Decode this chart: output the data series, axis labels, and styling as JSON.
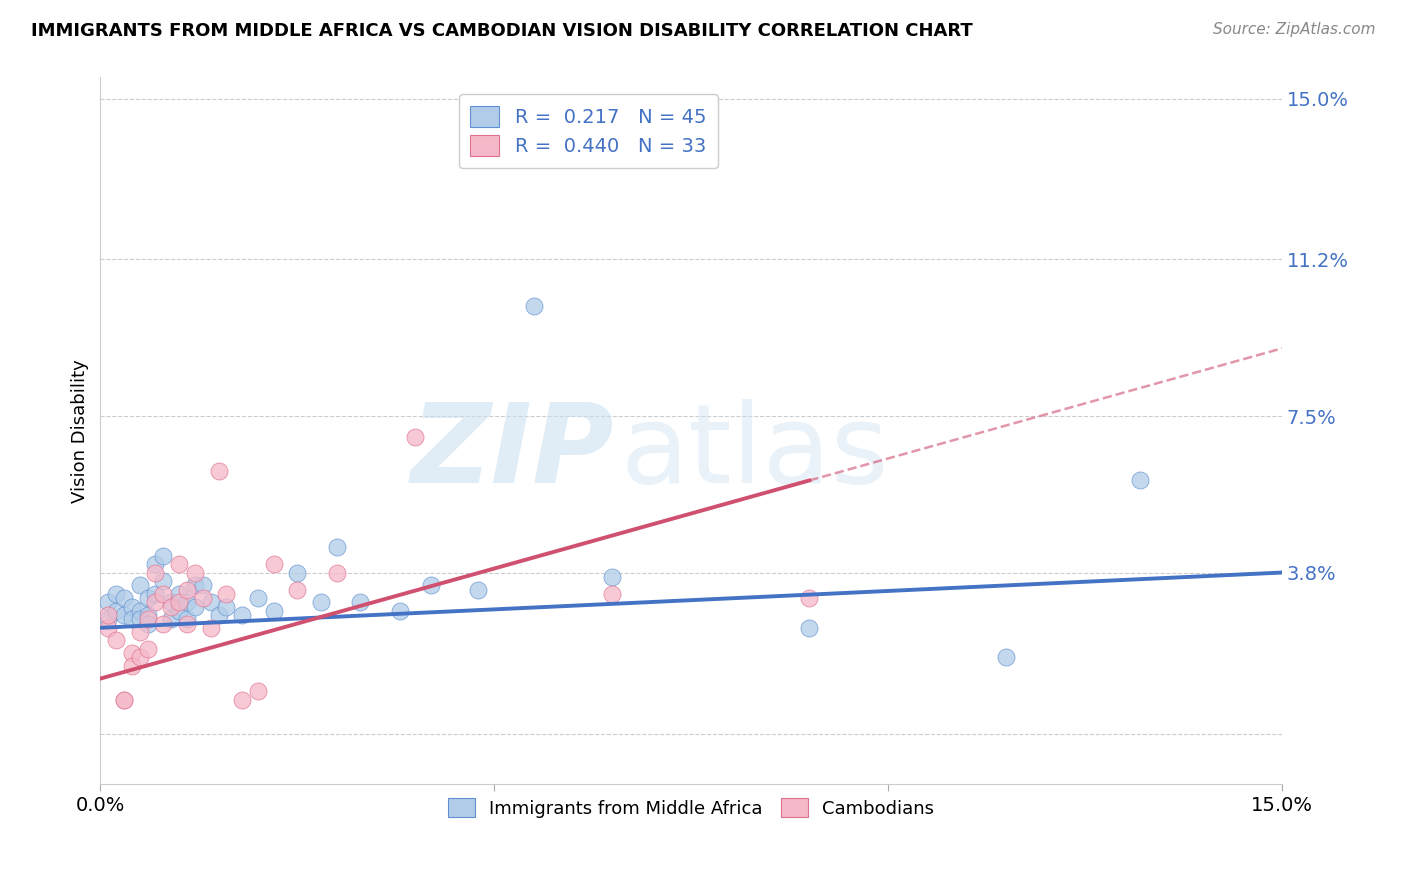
{
  "title": "IMMIGRANTS FROM MIDDLE AFRICA VS CAMBODIAN VISION DISABILITY CORRELATION CHART",
  "source": "Source: ZipAtlas.com",
  "ylabel": "Vision Disability",
  "xmin": 0.0,
  "xmax": 0.15,
  "ymin": -0.012,
  "ymax": 0.155,
  "ytick_vals": [
    0.0,
    0.038,
    0.075,
    0.112,
    0.15
  ],
  "ytick_labels": [
    "",
    "3.8%",
    "7.5%",
    "11.2%",
    "15.0%"
  ],
  "xtick_vals": [
    0.0,
    0.05,
    0.1,
    0.15
  ],
  "xtick_labels": [
    "0.0%",
    "",
    "",
    "15.0%"
  ],
  "blue_R": "0.217",
  "blue_N": "45",
  "pink_R": "0.440",
  "pink_N": "33",
  "blue_dot_color": "#b0cce8",
  "pink_dot_color": "#f5b8c8",
  "blue_edge_color": "#6090d0",
  "pink_edge_color": "#e07090",
  "blue_line_color": "#4472c4",
  "pink_line_color": "#d05070",
  "blue_scatter_x": [
    0.001,
    0.001,
    0.002,
    0.002,
    0.003,
    0.003,
    0.004,
    0.004,
    0.005,
    0.005,
    0.005,
    0.006,
    0.006,
    0.006,
    0.007,
    0.007,
    0.008,
    0.008,
    0.009,
    0.009,
    0.01,
    0.01,
    0.011,
    0.011,
    0.012,
    0.012,
    0.013,
    0.014,
    0.015,
    0.016,
    0.018,
    0.02,
    0.022,
    0.025,
    0.028,
    0.03,
    0.033,
    0.038,
    0.042,
    0.048,
    0.055,
    0.065,
    0.09,
    0.115,
    0.132
  ],
  "blue_scatter_y": [
    0.027,
    0.031,
    0.029,
    0.033,
    0.028,
    0.032,
    0.03,
    0.027,
    0.035,
    0.029,
    0.027,
    0.032,
    0.028,
    0.026,
    0.04,
    0.033,
    0.042,
    0.036,
    0.031,
    0.027,
    0.033,
    0.029,
    0.031,
    0.027,
    0.035,
    0.03,
    0.035,
    0.031,
    0.028,
    0.03,
    0.028,
    0.032,
    0.029,
    0.038,
    0.031,
    0.044,
    0.031,
    0.029,
    0.035,
    0.034,
    0.101,
    0.037,
    0.025,
    0.018,
    0.06
  ],
  "pink_scatter_x": [
    0.001,
    0.001,
    0.002,
    0.003,
    0.003,
    0.004,
    0.004,
    0.005,
    0.005,
    0.006,
    0.006,
    0.007,
    0.007,
    0.008,
    0.008,
    0.009,
    0.01,
    0.01,
    0.011,
    0.011,
    0.012,
    0.013,
    0.014,
    0.015,
    0.016,
    0.018,
    0.02,
    0.022,
    0.025,
    0.03,
    0.04,
    0.065,
    0.09
  ],
  "pink_scatter_y": [
    0.025,
    0.028,
    0.022,
    0.008,
    0.008,
    0.019,
    0.016,
    0.024,
    0.018,
    0.027,
    0.02,
    0.038,
    0.031,
    0.033,
    0.026,
    0.03,
    0.04,
    0.031,
    0.034,
    0.026,
    0.038,
    0.032,
    0.025,
    0.062,
    0.033,
    0.008,
    0.01,
    0.04,
    0.034,
    0.038,
    0.07,
    0.033,
    0.032
  ]
}
